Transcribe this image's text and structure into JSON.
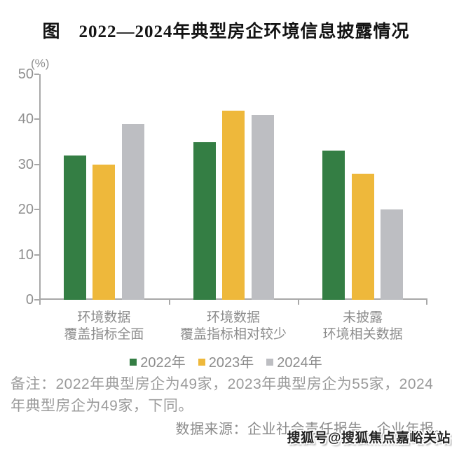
{
  "title": "图　2022—2024年典型房企环境信息披露情况",
  "chart_data": {
    "type": "bar",
    "title": "图　2022—2024年典型房企环境信息披露情况",
    "unit_label": "(%)",
    "categories": [
      "环境数据\n覆盖指标全面",
      "环境数据\n覆盖指标相对较少",
      "未披露\n环境相关数据"
    ],
    "series": [
      {
        "name": "2022年",
        "color": "#347E44",
        "values": [
          32,
          35,
          33
        ]
      },
      {
        "name": "2023年",
        "color": "#EEB83B",
        "values": [
          30,
          42,
          28
        ]
      },
      {
        "name": "2024年",
        "color": "#BDBEC2",
        "values": [
          39,
          41,
          20
        ]
      }
    ],
    "ylim": [
      0,
      50
    ],
    "yticks": [
      0,
      10,
      20,
      30,
      40,
      50
    ],
    "grid": false,
    "legend_position": "bottom"
  },
  "notes": {
    "remark_lines": [
      "备注：2022年典型房企为49家，2023年典型房企为55家，2024",
      "年典型房企为49家，下同。"
    ],
    "remark_full": "备注：2022年典型房企为49家，2023年典型房企为55家，2024年典型房企为49家，下同。",
    "source": "数据来源：企业社会责任报告、企业年报。"
  },
  "watermark": "搜狐号@搜狐焦点嘉峪关站",
  "colors": {
    "axis": "#A8A8A8",
    "axis_label_text": "#8F8F8F",
    "category_text": "#8D8D8D",
    "note_text": "#9B9B9B",
    "title_text": "#141414"
  }
}
